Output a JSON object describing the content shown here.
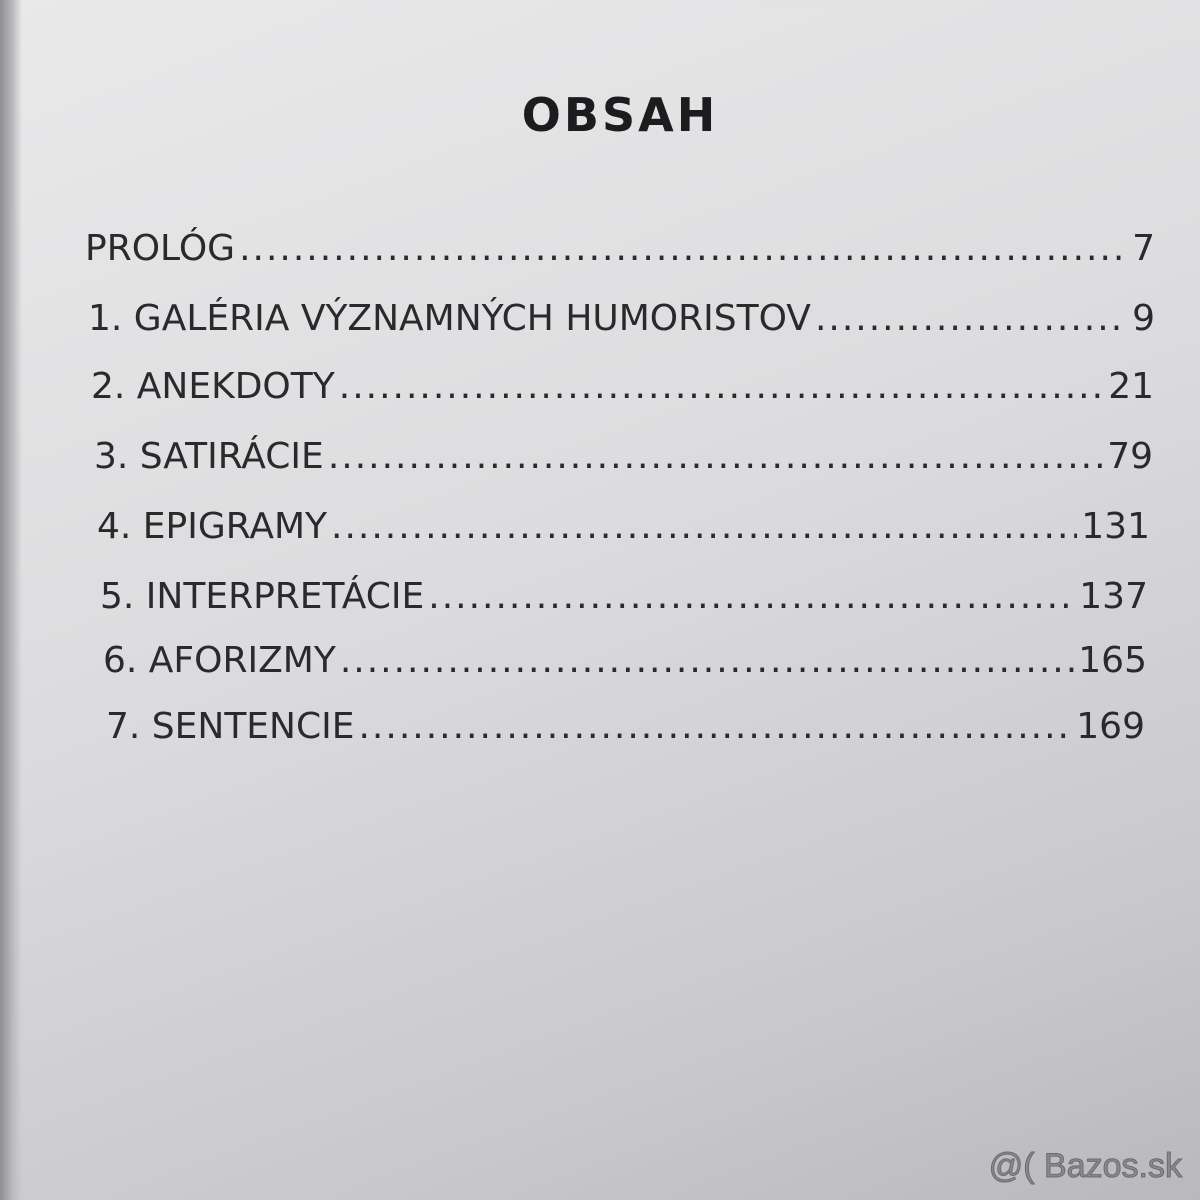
{
  "title": "OBSAH",
  "entries": [
    {
      "label": "PROLÓG",
      "page": "7"
    },
    {
      "label": "1. GALÉRIA VÝZNAMNÝCH HUMORISTOV",
      "page": "9"
    },
    {
      "label": "2. ANEKDOTY",
      "page": "21"
    },
    {
      "label": "3. SATIRÁCIE",
      "page": "79"
    },
    {
      "label": "4. EPIGRAMY",
      "page": "131"
    },
    {
      "label": "5. INTERPRETÁCIE",
      "page": "137"
    },
    {
      "label": "6. AFORIZMY",
      "page": "165"
    },
    {
      "label": "7. SENTENCIE",
      "page": "169"
    }
  ],
  "watermark": "@( Bazos.sk"
}
